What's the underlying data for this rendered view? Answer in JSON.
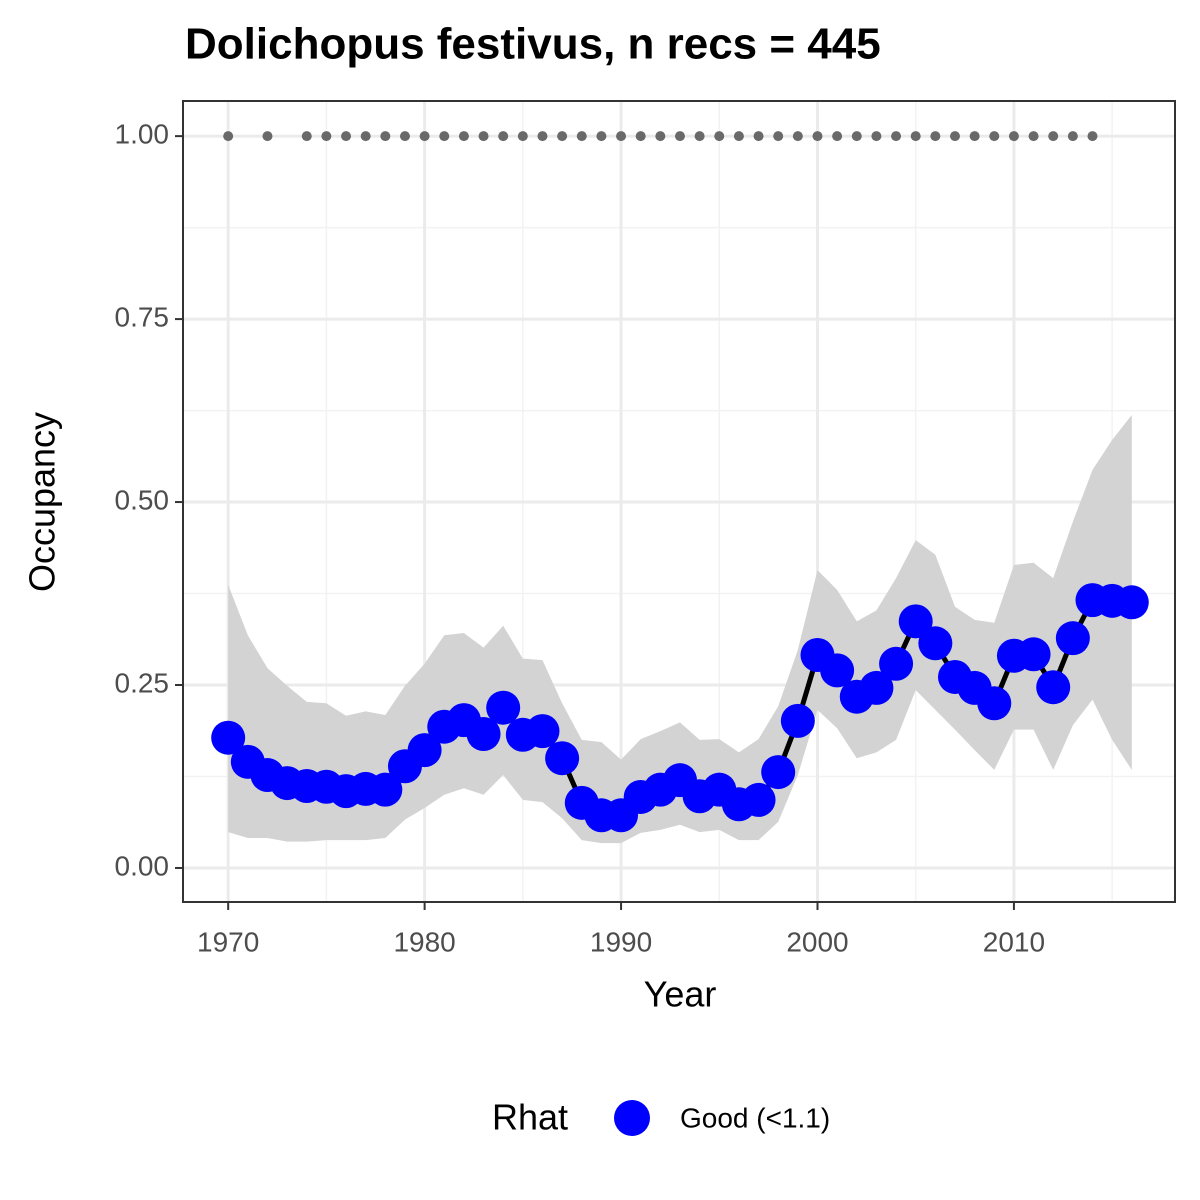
{
  "chart_data": {
    "type": "line",
    "title": "Dolichopus festivus, n recs = 445",
    "x_label": "Year",
    "y_label": "Occupancy",
    "legend_title": "Rhat",
    "legend_position": "bottom",
    "grid": true,
    "xlim": [
      1967.7,
      2018.2
    ],
    "ylim": [
      -0.0465,
      1.048
    ],
    "xticks": [
      1970,
      1980,
      1990,
      2000,
      2010
    ],
    "minor_xticks": [
      1975,
      1985,
      1995,
      2005,
      2015
    ],
    "yticks": [
      {
        "value": 0,
        "label": "0.00"
      },
      {
        "value": 0.25,
        "label": "0.25"
      },
      {
        "value": 0.5,
        "label": "0.50"
      },
      {
        "value": 0.75,
        "label": "0.75"
      },
      {
        "value": 1,
        "label": "1.00"
      }
    ],
    "minor_yticks": [
      0.125,
      0.375,
      0.625,
      0.875
    ],
    "x": [
      1970,
      1971,
      1972,
      1973,
      1974,
      1975,
      1976,
      1977,
      1978,
      1979,
      1980,
      1981,
      1982,
      1983,
      1984,
      1985,
      1986,
      1987,
      1988,
      1989,
      1990,
      1991,
      1992,
      1993,
      1994,
      1995,
      1996,
      1997,
      1998,
      1999,
      2000,
      2001,
      2002,
      2003,
      2004,
      2005,
      2006,
      2007,
      2008,
      2009,
      2010,
      2011,
      2012,
      2013,
      2014,
      2015,
      2016
    ],
    "line_color": "#000000",
    "series": [
      {
        "name": "Good (<1.1)",
        "color": "#0000ff",
        "values": [
          0.178,
          0.145,
          0.127,
          0.116,
          0.112,
          0.111,
          0.105,
          0.108,
          0.107,
          0.139,
          0.161,
          0.193,
          0.202,
          0.183,
          0.219,
          0.182,
          0.187,
          0.15,
          0.089,
          0.072,
          0.072,
          0.097,
          0.107,
          0.12,
          0.098,
          0.107,
          0.087,
          0.093,
          0.131,
          0.201,
          0.291,
          0.27,
          0.234,
          0.246,
          0.279,
          0.337,
          0.307,
          0.261,
          0.246,
          0.225,
          0.29,
          0.292,
          0.247,
          0.314,
          0.366,
          0.365,
          0.363
        ]
      }
    ],
    "band": {
      "color": "#d3d3d3",
      "upper": [
        0.387,
        0.318,
        0.273,
        0.249,
        0.227,
        0.225,
        0.208,
        0.214,
        0.209,
        0.249,
        0.279,
        0.318,
        0.321,
        0.301,
        0.331,
        0.286,
        0.284,
        0.225,
        0.175,
        0.172,
        0.148,
        0.176,
        0.187,
        0.199,
        0.175,
        0.176,
        0.158,
        0.176,
        0.221,
        0.298,
        0.407,
        0.38,
        0.337,
        0.352,
        0.396,
        0.448,
        0.428,
        0.357,
        0.339,
        0.335,
        0.414,
        0.417,
        0.396,
        0.473,
        0.544,
        0.585,
        0.619
      ],
      "lower": [
        0.049,
        0.041,
        0.041,
        0.036,
        0.036,
        0.038,
        0.038,
        0.038,
        0.041,
        0.066,
        0.082,
        0.1,
        0.109,
        0.1,
        0.127,
        0.093,
        0.09,
        0.068,
        0.038,
        0.034,
        0.034,
        0.048,
        0.052,
        0.059,
        0.049,
        0.052,
        0.038,
        0.038,
        0.063,
        0.127,
        0.216,
        0.191,
        0.15,
        0.158,
        0.175,
        0.243,
        0.216,
        0.189,
        0.161,
        0.134,
        0.189,
        0.189,
        0.134,
        0.195,
        0.23,
        0.175,
        0.134
      ]
    },
    "record_points": {
      "color": "#696969",
      "x": [
        1970,
        1972,
        1974,
        1975,
        1976,
        1977,
        1978,
        1979,
        1980,
        1981,
        1982,
        1983,
        1984,
        1985,
        1986,
        1987,
        1988,
        1989,
        1990,
        1991,
        1992,
        1993,
        1994,
        1995,
        1996,
        1997,
        1998,
        1999,
        2000,
        2001,
        2002,
        2003,
        2004,
        2005,
        2006,
        2007,
        2008,
        2009,
        2010,
        2011,
        2012,
        2013,
        2014
      ],
      "values": [
        1,
        1,
        1,
        1,
        1,
        1,
        1,
        1,
        1,
        1,
        1,
        1,
        1,
        1,
        1,
        1,
        1,
        1,
        1,
        1,
        1,
        1,
        1,
        1,
        1,
        1,
        1,
        1,
        1,
        1,
        1,
        1,
        1,
        1,
        1,
        1,
        1,
        1,
        1,
        1,
        1,
        1,
        1
      ]
    }
  }
}
